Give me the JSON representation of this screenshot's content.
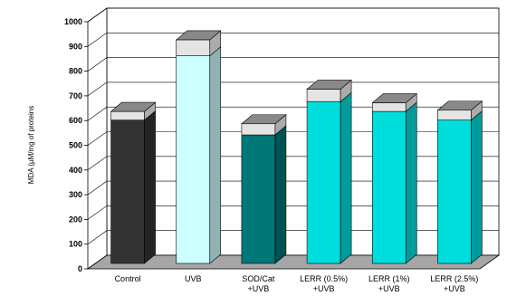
{
  "chart_data": {
    "type": "bar",
    "style": "3d-stacked",
    "ylabel": "MDA (µM/mg of proteins",
    "ylim": [
      0,
      1000
    ],
    "yticks": [
      0,
      100,
      200,
      300,
      400,
      500,
      600,
      700,
      800,
      900,
      1000
    ],
    "grid": true,
    "categories": [
      {
        "line1": "Control",
        "line2": ""
      },
      {
        "line1": "UVB",
        "line2": ""
      },
      {
        "line1": "SOD/Cat",
        "line2": "+UVB"
      },
      {
        "line1": "LERR (0.5%)",
        "line2": "+UVB"
      },
      {
        "line1": "LERR (1%)",
        "line2": "+UVB"
      },
      {
        "line1": "LERR (2.5%)",
        "line2": "+UVB"
      }
    ],
    "series": [
      {
        "values": [
          580,
          840,
          520,
          655,
          615,
          580
        ]
      },
      {
        "values": [
          35,
          65,
          45,
          50,
          35,
          40
        ]
      }
    ],
    "colors": {
      "bars": [
        "#333333",
        "#ccffff",
        "#007777",
        "#00dddd",
        "#00dddd",
        "#00dddd"
      ],
      "cap": "#e4e4e4",
      "floor": "#a6a6a6",
      "grid": "#000000"
    }
  }
}
